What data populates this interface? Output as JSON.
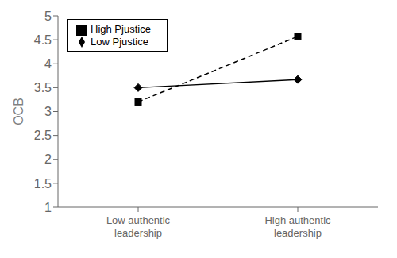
{
  "chart_data": {
    "type": "line",
    "y_label": "OCB",
    "categories": [
      "Low authentic\nleadership",
      "High authentic\nleadership"
    ],
    "series": [
      {
        "name": "Low Pjustice",
        "color": "#000000",
        "marker": "diamond",
        "line_style": "solid",
        "values": [
          3.5,
          3.67
        ]
      },
      {
        "name": "High Pjustice",
        "color": "#000000",
        "marker": "square",
        "line_style": "dashed",
        "values": [
          3.2,
          4.57
        ]
      }
    ],
    "ylim": [
      1,
      5
    ],
    "yticks": [
      1,
      1.5,
      2,
      2.5,
      3,
      3.5,
      4,
      4.5,
      5
    ],
    "grid": false,
    "legend": "upper left"
  }
}
